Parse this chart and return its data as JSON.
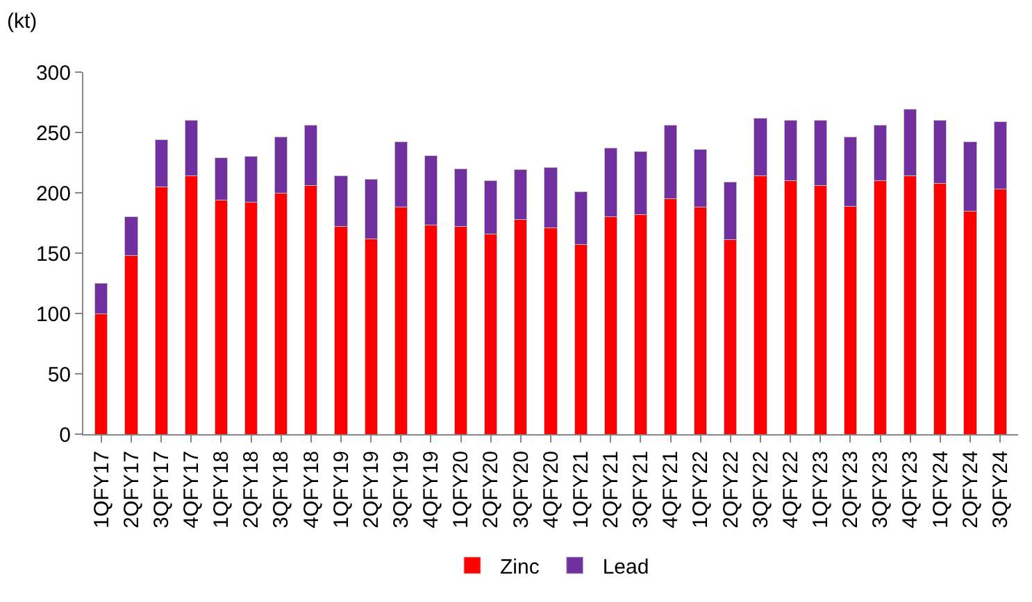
{
  "chart_data": {
    "type": "bar",
    "stacked": true,
    "ylabel": "(kt)",
    "categories": [
      "1QFY17",
      "2QFY17",
      "3QFY17",
      "4QFY17",
      "1QFY18",
      "2QFY18",
      "3QFY18",
      "4QFY18",
      "1QFY19",
      "2QFY19",
      "3QFY19",
      "4QFY19",
      "1QFY20",
      "2QFY20",
      "3QFY20",
      "4QFY20",
      "1QFY21",
      "2QFY21",
      "3QFY21",
      "4QFY21",
      "1QFY22",
      "2QFY22",
      "3QFY22",
      "4QFY22",
      "1QFY23",
      "2QFY23",
      "3QFY23",
      "4QFY23",
      "1QFY24",
      "2QFY24",
      "3QFY24"
    ],
    "series": [
      {
        "name": "Zinc",
        "color": "#ff0000",
        "values": [
          100,
          148,
          205,
          214,
          194,
          192,
          200,
          206,
          172,
          162,
          188,
          173,
          172,
          166,
          178,
          171,
          157,
          180,
          182,
          195,
          188,
          161,
          214,
          210,
          206,
          189,
          210,
          214,
          208,
          185,
          203
        ]
      },
      {
        "name": "Lead",
        "color": "#7030a0",
        "values": [
          25,
          32,
          39,
          46,
          35,
          38,
          46,
          50,
          42,
          49,
          54,
          58,
          48,
          44,
          41,
          50,
          44,
          57,
          52,
          61,
          48,
          48,
          48,
          50,
          54,
          57,
          46,
          55,
          52,
          57,
          56
        ]
      }
    ],
    "ylim": [
      0,
      300
    ],
    "yticks": [
      0,
      50,
      100,
      150,
      200,
      250,
      300
    ],
    "grid": false,
    "legend": "bottom"
  }
}
